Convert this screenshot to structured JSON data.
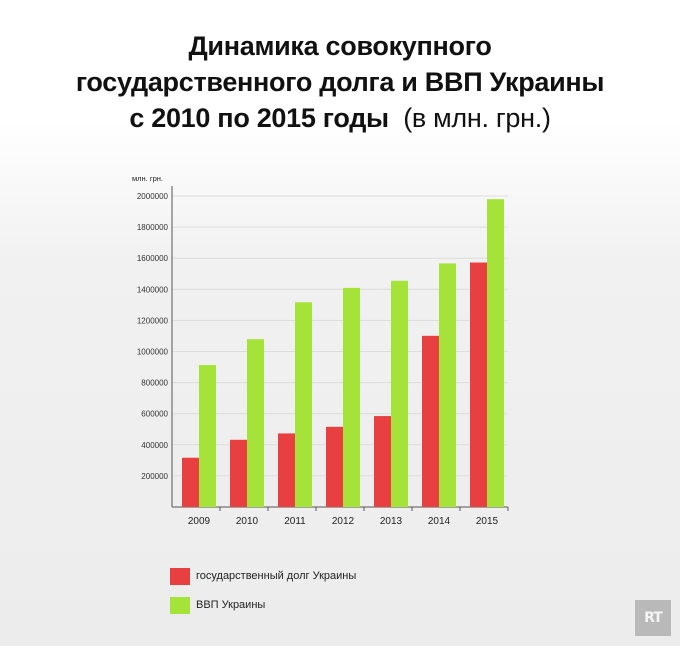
{
  "title": {
    "line1": "Динамика совокупного",
    "line2": "государственного долга и ВВП Украины",
    "line3": "с 2010 по 2015 годы",
    "unit": "(в млн. грн.)"
  },
  "chart_data": {
    "type": "bar",
    "ylabel": "млн. грн.",
    "ylim": [
      0,
      2000000
    ],
    "yticks": [
      200000,
      400000,
      600000,
      800000,
      1000000,
      1200000,
      1400000,
      1600000,
      1800000,
      2000000
    ],
    "ytick_labels": [
      "200000",
      "400000",
      "600000",
      "800000",
      "1000000",
      "1200000",
      "1400000",
      "1600000",
      "1800000",
      "2000000"
    ],
    "grid": true,
    "legend_position": "bottom-left",
    "categories": [
      "2009",
      "2010",
      "2011",
      "2012",
      "2013",
      "2014",
      "2015"
    ],
    "series": [
      {
        "name": "государственный долг Украины",
        "color": "#e84040",
        "values": [
          316900,
          432200,
          473100,
          515500,
          584800,
          1100800,
          1572200
        ]
      },
      {
        "name": "ВВП Украины",
        "color": "#a5e23a",
        "values": [
          913300,
          1079300,
          1316600,
          1408900,
          1454900,
          1566700,
          1979500
        ]
      }
    ]
  },
  "logo": {
    "text": "RT"
  }
}
